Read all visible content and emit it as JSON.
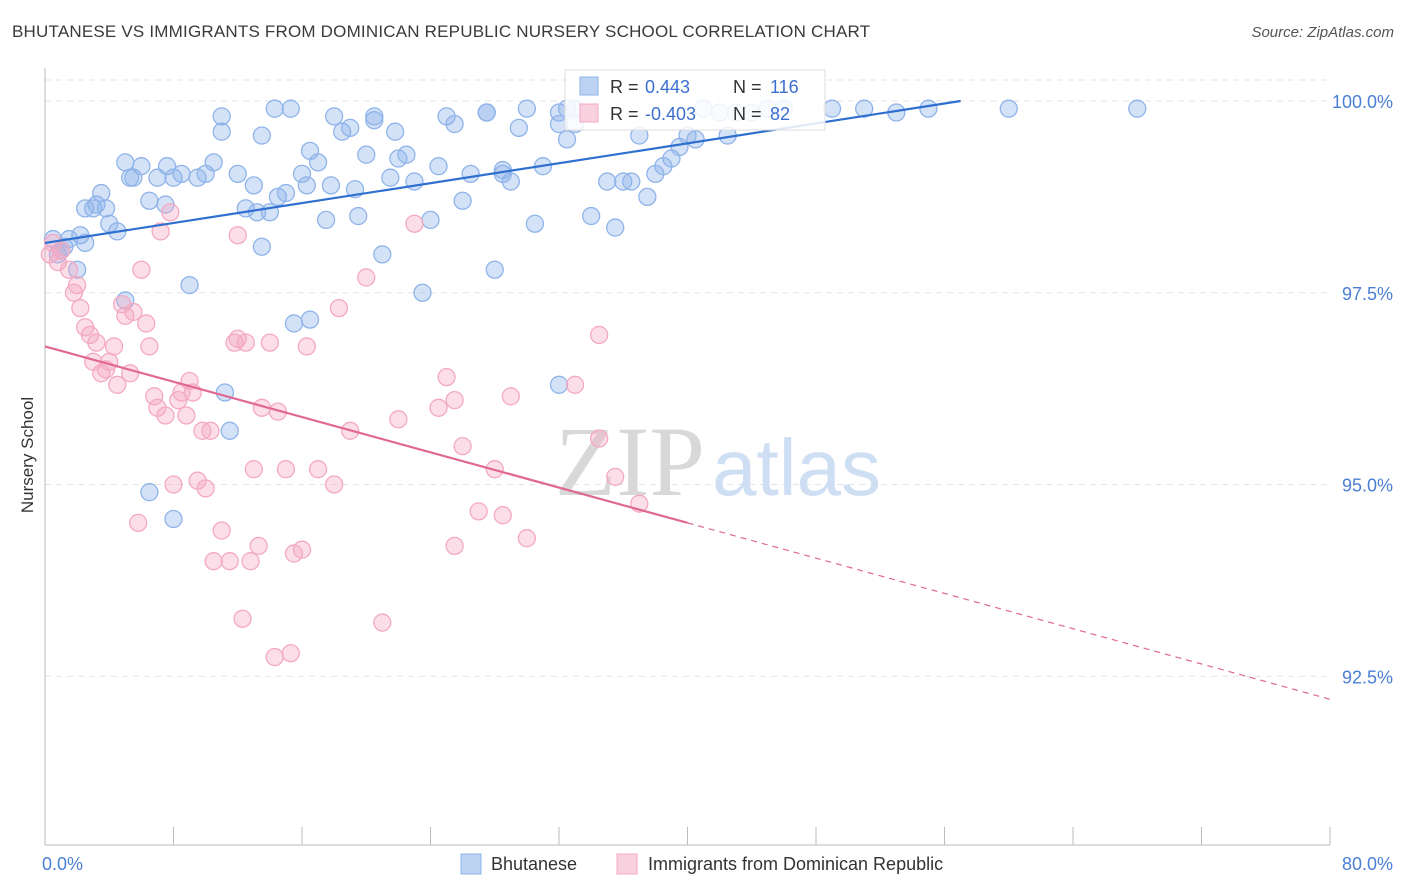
{
  "title": "BHUTANESE VS IMMIGRANTS FROM DOMINICAN REPUBLIC NURSERY SCHOOL CORRELATION CHART",
  "source": "Source: ZipAtlas.com",
  "watermark": {
    "zip": "ZIP",
    "atlas": "atlas"
  },
  "legend_box": {
    "r_label": "R =",
    "n_label": "N =",
    "rows": [
      {
        "r": "0.443",
        "n": "116",
        "color": "#8fb4ea"
      },
      {
        "r": "-0.403",
        "n": "82",
        "color": "#f4a9c2"
      }
    ]
  },
  "chart_data": {
    "type": "scatter",
    "title": "BHUTANESE VS IMMIGRANTS FROM DOMINICAN REPUBLIC NURSERY SCHOOL CORRELATION CHART",
    "xlabel": "",
    "ylabel": "Nursery School",
    "xlim": [
      0,
      80
    ],
    "ylim": [
      90.3,
      100.3
    ],
    "x_tick_labels": [
      "0.0%",
      "80.0%"
    ],
    "y_ticks": [
      92.5,
      95.0,
      97.5,
      100.0
    ],
    "y_tick_labels": [
      "92.5%",
      "95.0%",
      "97.5%",
      "100.0%"
    ],
    "grid": true,
    "legend_position": "bottom-center",
    "series": [
      {
        "name": "Bhutanese",
        "color": "#8fb4ea",
        "line_color": "#2f6fcf",
        "trend": {
          "x0": 0,
          "y0": 98.15,
          "x1": 57,
          "y1": 100.0,
          "dashed_to": null
        },
        "points": [
          [
            0.5,
            98.2
          ],
          [
            0.8,
            98.0
          ],
          [
            1,
            98.05
          ],
          [
            1.2,
            98.1
          ],
          [
            1.5,
            98.2
          ],
          [
            2,
            97.8
          ],
          [
            2.2,
            98.25
          ],
          [
            2.5,
            98.15
          ],
          [
            2.5,
            98.6
          ],
          [
            3,
            98.6
          ],
          [
            3.2,
            98.65
          ],
          [
            3.5,
            98.8
          ],
          [
            3.8,
            98.6
          ],
          [
            4,
            98.4
          ],
          [
            4.5,
            98.3
          ],
          [
            5,
            97.4
          ],
          [
            5,
            99.2
          ],
          [
            5.3,
            99.0
          ],
          [
            5.5,
            99.0
          ],
          [
            6,
            99.15
          ],
          [
            6.5,
            98.7
          ],
          [
            7,
            99.0
          ],
          [
            7.5,
            98.65
          ],
          [
            7.6,
            99.15
          ],
          [
            8,
            99.0
          ],
          [
            8.5,
            99.05
          ],
          [
            9,
            97.6
          ],
          [
            9.5,
            99.0
          ],
          [
            10,
            99.05
          ],
          [
            10.5,
            99.2
          ],
          [
            11,
            99.8
          ],
          [
            11,
            99.6
          ],
          [
            12,
            99.05
          ],
          [
            12.5,
            98.6
          ],
          [
            13,
            98.9
          ],
          [
            13.2,
            98.55
          ],
          [
            13.5,
            98.1
          ],
          [
            13.5,
            99.55
          ],
          [
            14,
            98.55
          ],
          [
            14.5,
            98.75
          ],
          [
            15,
            98.8
          ],
          [
            14.3,
            99.9
          ],
          [
            15.3,
            99.9
          ],
          [
            15.5,
            97.1
          ],
          [
            16,
            99.05
          ],
          [
            16.3,
            98.9
          ],
          [
            16.5,
            99.35
          ],
          [
            17,
            99.2
          ],
          [
            17.5,
            98.45
          ],
          [
            17.8,
            98.9
          ],
          [
            18,
            99.8
          ],
          [
            18.5,
            99.6
          ],
          [
            19,
            99.65
          ],
          [
            19.3,
            98.85
          ],
          [
            19.5,
            98.5
          ],
          [
            20,
            99.3
          ],
          [
            20.5,
            99.75
          ],
          [
            20.5,
            99.8
          ],
          [
            21,
            98.0
          ],
          [
            21.5,
            99.0
          ],
          [
            21.8,
            99.6
          ],
          [
            22,
            99.25
          ],
          [
            22.5,
            99.3
          ],
          [
            23,
            98.95
          ],
          [
            23.5,
            97.5
          ],
          [
            24,
            98.45
          ],
          [
            24.5,
            99.15
          ],
          [
            25,
            99.8
          ],
          [
            25.5,
            99.7
          ],
          [
            26,
            98.7
          ],
          [
            26.5,
            99.05
          ],
          [
            27.5,
            99.85
          ],
          [
            27.5,
            99.85
          ],
          [
            28,
            97.8
          ],
          [
            28.5,
            99.05
          ],
          [
            28.5,
            99.1
          ],
          [
            29,
            98.95
          ],
          [
            29.5,
            99.65
          ],
          [
            30,
            99.9
          ],
          [
            30.5,
            98.4
          ],
          [
            31,
            99.15
          ],
          [
            32,
            99.85
          ],
          [
            32,
            99.7
          ],
          [
            32,
            96.3
          ],
          [
            32.5,
            99.5
          ],
          [
            32.5,
            99.9
          ],
          [
            33,
            99.7
          ],
          [
            33,
            99.9
          ],
          [
            34,
            98.5
          ],
          [
            35,
            98.95
          ],
          [
            35.5,
            98.35
          ],
          [
            36,
            98.95
          ],
          [
            36.5,
            98.95
          ],
          [
            37,
            99.55
          ],
          [
            37.5,
            98.75
          ],
          [
            38,
            99.05
          ],
          [
            38.5,
            99.15
          ],
          [
            39,
            99.25
          ],
          [
            39.5,
            99.4
          ],
          [
            40,
            99.55
          ],
          [
            40.5,
            99.5
          ],
          [
            41,
            99.9
          ],
          [
            42,
            99.85
          ],
          [
            42.5,
            99.55
          ],
          [
            43,
            99.85
          ],
          [
            44,
            99.85
          ],
          [
            45,
            99.9
          ],
          [
            46,
            99.9
          ],
          [
            49,
            99.9
          ],
          [
            51,
            99.9
          ],
          [
            53,
            99.85
          ],
          [
            55,
            99.9
          ],
          [
            60,
            99.9
          ],
          [
            68,
            99.9
          ],
          [
            11.2,
            96.2
          ],
          [
            11.5,
            95.7
          ],
          [
            6.5,
            94.9
          ],
          [
            8,
            94.55
          ],
          [
            16.5,
            97.15
          ]
        ]
      },
      {
        "name": "Immigrants from Dominican Republic",
        "color": "#f4a9c2",
        "line_color": "#e06893",
        "trend": {
          "x0": 0,
          "y0": 96.8,
          "x1": 40,
          "y1": 94.5,
          "dashed_to": [
            80,
            92.2
          ]
        },
        "points": [
          [
            0.3,
            98.0
          ],
          [
            0.5,
            98.15
          ],
          [
            0.8,
            97.9
          ],
          [
            1,
            98.05
          ],
          [
            1.5,
            97.8
          ],
          [
            1.8,
            97.5
          ],
          [
            2,
            97.6
          ],
          [
            2.2,
            97.3
          ],
          [
            2.5,
            97.05
          ],
          [
            2.8,
            96.95
          ],
          [
            3,
            96.6
          ],
          [
            3.2,
            96.85
          ],
          [
            3.5,
            96.45
          ],
          [
            3.8,
            96.5
          ],
          [
            4,
            96.6
          ],
          [
            4.3,
            96.8
          ],
          [
            4.5,
            96.3
          ],
          [
            4.8,
            97.35
          ],
          [
            5,
            97.2
          ],
          [
            5.3,
            96.45
          ],
          [
            5.5,
            97.25
          ],
          [
            5.8,
            94.5
          ],
          [
            6,
            97.8
          ],
          [
            6.3,
            97.1
          ],
          [
            6.5,
            96.8
          ],
          [
            6.8,
            96.15
          ],
          [
            7,
            96.0
          ],
          [
            7.2,
            98.3
          ],
          [
            7.5,
            95.9
          ],
          [
            7.8,
            98.55
          ],
          [
            8,
            95.0
          ],
          [
            8.3,
            96.1
          ],
          [
            8.5,
            96.2
          ],
          [
            8.8,
            95.9
          ],
          [
            9,
            96.35
          ],
          [
            9.2,
            96.2
          ],
          [
            9.5,
            95.05
          ],
          [
            9.8,
            95.7
          ],
          [
            10,
            94.95
          ],
          [
            10.3,
            95.7
          ],
          [
            10.5,
            94.0
          ],
          [
            11,
            94.4
          ],
          [
            11.5,
            94.0
          ],
          [
            11.8,
            96.85
          ],
          [
            12,
            98.25
          ],
          [
            12,
            96.9
          ],
          [
            12.3,
            93.25
          ],
          [
            12.5,
            96.85
          ],
          [
            12.8,
            94.0
          ],
          [
            13,
            95.2
          ],
          [
            13.3,
            94.2
          ],
          [
            13.5,
            96.0
          ],
          [
            14,
            96.85
          ],
          [
            14.3,
            92.75
          ],
          [
            14.5,
            95.95
          ],
          [
            15,
            95.2
          ],
          [
            15.3,
            92.8
          ],
          [
            15.5,
            94.1
          ],
          [
            16,
            94.15
          ],
          [
            16.3,
            96.8
          ],
          [
            17,
            95.2
          ],
          [
            18,
            95.0
          ],
          [
            18.3,
            97.3
          ],
          [
            19,
            95.7
          ],
          [
            20,
            97.7
          ],
          [
            21,
            93.2
          ],
          [
            22,
            95.85
          ],
          [
            23,
            98.4
          ],
          [
            24.5,
            96.0
          ],
          [
            25,
            96.4
          ],
          [
            25.5,
            96.1
          ],
          [
            25.5,
            94.2
          ],
          [
            26,
            95.5
          ],
          [
            27,
            94.65
          ],
          [
            28,
            95.2
          ],
          [
            28.5,
            94.6
          ],
          [
            29,
            96.15
          ],
          [
            30,
            94.3
          ],
          [
            33,
            96.3
          ],
          [
            34.5,
            96.95
          ],
          [
            34.5,
            95.6
          ],
          [
            35.5,
            95.1
          ],
          [
            37,
            94.75
          ]
        ]
      }
    ]
  }
}
